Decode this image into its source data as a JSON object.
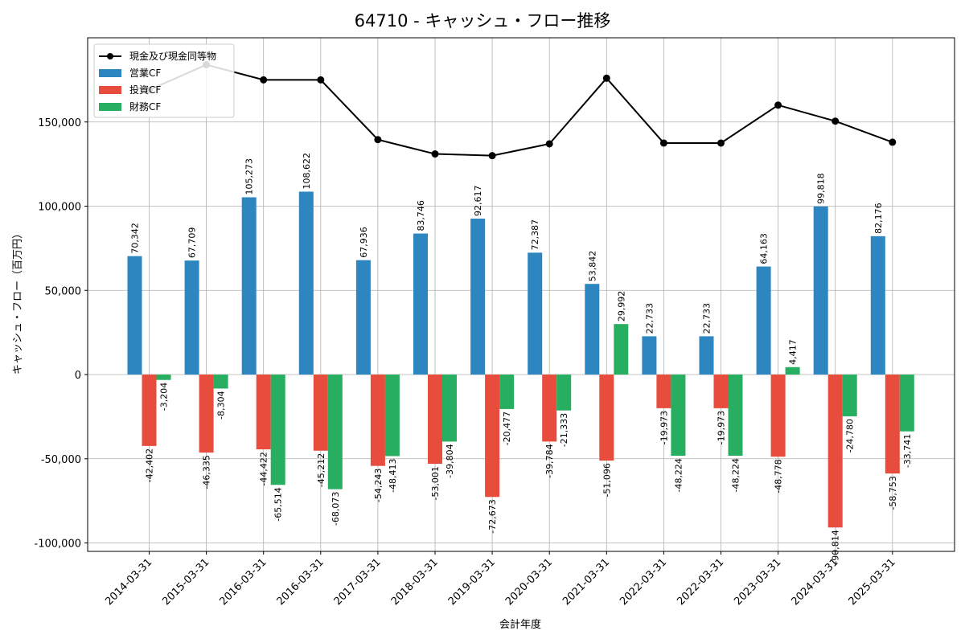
{
  "chart_data": {
    "type": "bar",
    "title": "64710 - キャッシュ・フロー推移",
    "xlabel": "会計年度",
    "ylabel": "キャッシュ・フロー（百万円）",
    "ylim": [
      -105000,
      200000
    ],
    "yticks": [
      -100000,
      -50000,
      0,
      50000,
      100000,
      150000
    ],
    "ytick_labels": [
      "-100,000",
      "-50,000",
      "0",
      "50,000",
      "100,000",
      "150,000"
    ],
    "grid": true,
    "legend_position": "top-left",
    "categories": [
      "2014-03-31",
      "2015-03-31",
      "2016-03-31",
      "2016-03-31",
      "2017-03-31",
      "2018-03-31",
      "2019-03-31",
      "2020-03-31",
      "2021-03-31",
      "2022-03-31",
      "2022-03-31",
      "2023-03-31",
      "2024-03-31",
      "2025-03-31"
    ],
    "series": [
      {
        "name": "営業CF",
        "kind": "bar",
        "color": "#2e86c1",
        "values": [
          70342,
          67709,
          105273,
          108622,
          67936,
          83746,
          92617,
          72387,
          53842,
          22733,
          22733,
          64163,
          99818,
          82176
        ],
        "labels": [
          "70,342",
          "67,709",
          "105,273",
          "108,622",
          "67,936",
          "83,746",
          "92,617",
          "72,387",
          "53,842",
          "22,733",
          "22,733",
          "64,163",
          "99,818",
          "82,176"
        ]
      },
      {
        "name": "投資CF",
        "kind": "bar",
        "color": "#e74c3c",
        "values": [
          -42402,
          -46335,
          -44422,
          -45212,
          -54243,
          -53001,
          -72673,
          -39784,
          -51096,
          -19973,
          -19973,
          -48778,
          -90814,
          -58753
        ],
        "labels": [
          "-42,402",
          "-46,335",
          "-44,422",
          "-45,212",
          "-54,243",
          "-53,001",
          "-72,673",
          "-39,784",
          "-51,096",
          "-19,973",
          "-19,973",
          "-48,778",
          "-90,814",
          "-58,753"
        ]
      },
      {
        "name": "財務CF",
        "kind": "bar",
        "color": "#27ae60",
        "values": [
          -3204,
          -8304,
          -65514,
          -68073,
          -48413,
          -39804,
          -20477,
          -21333,
          29992,
          -48224,
          -48224,
          4417,
          -24780,
          -33741
        ],
        "labels": [
          "-3,204",
          "-8,304",
          "-65,514",
          "-68,073",
          "-48,413",
          "-39,804",
          "-20,477",
          "-21,333",
          "29,992",
          "-48,224",
          "-48,224",
          "4,417",
          "-24,780",
          "-33,741"
        ]
      },
      {
        "name": "現金及び現金同等物",
        "kind": "line",
        "color": "#000000",
        "values": [
          169000,
          184000,
          175000,
          175000,
          139500,
          131000,
          130000,
          137000,
          176000,
          137500,
          137500,
          160000,
          150500,
          138000
        ]
      }
    ]
  }
}
